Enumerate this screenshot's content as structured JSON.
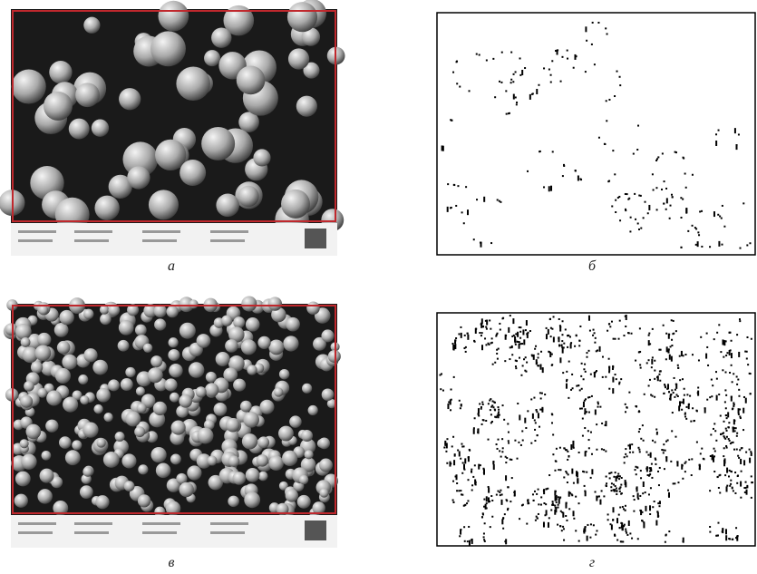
{
  "panels": [
    {
      "label": "а"
    },
    {
      "label": "б"
    },
    {
      "label": "в"
    },
    {
      "label": "г"
    }
  ]
}
